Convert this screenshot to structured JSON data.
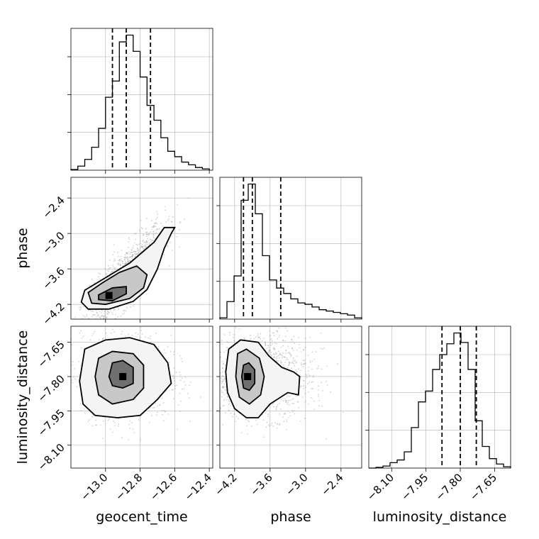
{
  "chart_data": {
    "type": "corner",
    "parameters": [
      "geocent_time",
      "phase",
      "luminosity_distance"
    ],
    "axes": {
      "geocent_time": {
        "label": "geocent_time",
        "range": [
          -13.2,
          -12.38
        ],
        "ticks": [
          -13.0,
          -12.8,
          -12.6,
          -12.4
        ],
        "tick_labels": [
          "−13.0",
          "−12.8",
          "−12.6",
          "−12.4"
        ]
      },
      "phase": {
        "label": "phase",
        "range": [
          -4.45,
          -2.05
        ],
        "ticks": [
          -4.2,
          -3.6,
          -3.0,
          -2.4
        ],
        "tick_labels": [
          "−4.2",
          "−3.6",
          "−3.0",
          "−2.4"
        ]
      },
      "luminosity_distance": {
        "label": "luminosity_distance",
        "range": [
          -8.2,
          -7.58
        ],
        "ticks": [
          -8.1,
          -7.95,
          -7.8,
          -7.65
        ],
        "tick_labels": [
          "−8.10",
          "−7.95",
          "−7.80",
          "−7.65"
        ]
      }
    },
    "histograms": [
      {
        "parameter": "geocent_time",
        "bin_edges": [
          -13.2,
          -13.16,
          -13.12,
          -13.08,
          -13.04,
          -13.0,
          -12.96,
          -12.92,
          -12.88,
          -12.84,
          -12.8,
          -12.76,
          -12.72,
          -12.68,
          -12.64,
          -12.6,
          -12.56,
          -12.52,
          -12.48,
          -12.44,
          -12.4
        ],
        "counts": [
          0.005,
          0.03,
          0.08,
          0.17,
          0.31,
          0.54,
          0.66,
          0.95,
          1.0,
          0.88,
          0.69,
          0.48,
          0.37,
          0.24,
          0.14,
          0.1,
          0.06,
          0.04,
          0.02,
          0.01
        ],
        "quantiles": [
          -12.96,
          -12.88,
          -12.74
        ]
      },
      {
        "parameter": "phase",
        "bin_edges": [
          -4.45,
          -4.33,
          -4.21,
          -4.09,
          -3.97,
          -3.85,
          -3.73,
          -3.61,
          -3.49,
          -3.37,
          -3.25,
          -3.13,
          -3.01,
          -2.89,
          -2.77,
          -2.65,
          -2.53,
          -2.41,
          -2.29,
          -2.17,
          -2.05
        ],
        "counts": [
          0.01,
          0.13,
          0.32,
          0.88,
          1.0,
          0.78,
          0.47,
          0.29,
          0.23,
          0.19,
          0.15,
          0.12,
          0.11,
          0.09,
          0.07,
          0.06,
          0.05,
          0.04,
          0.03,
          0.01
        ],
        "quantiles": [
          -4.05,
          -3.9,
          -3.42
        ]
      },
      {
        "parameter": "luminosity_distance",
        "bin_edges": [
          -8.2,
          -8.169,
          -8.138,
          -8.107,
          -8.076,
          -8.045,
          -8.014,
          -7.983,
          -7.952,
          -7.921,
          -7.89,
          -7.859,
          -7.828,
          -7.797,
          -7.766,
          -7.735,
          -7.704,
          -7.673,
          -7.642,
          -7.611,
          -7.58
        ],
        "counts": [
          0.0,
          0.005,
          0.015,
          0.04,
          0.06,
          0.12,
          0.3,
          0.49,
          0.57,
          0.73,
          0.84,
          0.92,
          1.0,
          0.93,
          0.73,
          0.35,
          0.16,
          0.07,
          0.03,
          0.01
        ],
        "quantiles": [
          -7.88,
          -7.8,
          -7.73
        ]
      }
    ],
    "pairs": [
      {
        "x": "geocent_time",
        "y": "phase",
        "peak": [
          -12.98,
          -4.05
        ],
        "contours": [
          [
            [
              -13.14,
              -4.16
            ],
            [
              -13.1,
              -4.28
            ],
            [
              -12.98,
              -4.28
            ],
            [
              -12.84,
              -4.15
            ],
            [
              -12.76,
              -3.95
            ],
            [
              -12.7,
              -3.6
            ],
            [
              -12.66,
              -3.25
            ],
            [
              -12.62,
              -3.0
            ],
            [
              -12.6,
              -2.9
            ],
            [
              -12.66,
              -2.9
            ],
            [
              -12.72,
              -3.15
            ],
            [
              -12.86,
              -3.5
            ],
            [
              -13.0,
              -3.75
            ],
            [
              -13.12,
              -3.96
            ],
            [
              -13.14,
              -4.16
            ]
          ],
          [
            [
              -13.08,
              -4.18
            ],
            [
              -13.0,
              -4.2
            ],
            [
              -12.86,
              -4.1
            ],
            [
              -12.78,
              -3.92
            ],
            [
              -12.76,
              -3.7
            ],
            [
              -12.82,
              -3.55
            ],
            [
              -12.92,
              -3.66
            ],
            [
              -13.02,
              -3.84
            ],
            [
              -13.1,
              -4.0
            ],
            [
              -13.08,
              -4.18
            ]
          ],
          [
            [
              -13.04,
              -4.12
            ],
            [
              -12.96,
              -4.14
            ],
            [
              -12.88,
              -4.02
            ],
            [
              -12.88,
              -3.9
            ],
            [
              -12.96,
              -3.92
            ],
            [
              -13.04,
              -4.04
            ],
            [
              -13.04,
              -4.12
            ]
          ]
        ],
        "scatter": {
          "center": [
            -12.9,
            -3.8
          ],
          "sx": 0.12,
          "sy": 0.45,
          "rho": 0.85,
          "n": 1400
        }
      },
      {
        "x": "geocent_time",
        "y": "luminosity_distance",
        "peak": [
          -12.9,
          -7.8
        ],
        "contours": [
          [
            [
              -13.15,
              -7.82
            ],
            [
              -13.12,
              -7.68
            ],
            [
              -13.0,
              -7.64
            ],
            [
              -12.86,
              -7.63
            ],
            [
              -12.72,
              -7.66
            ],
            [
              -12.64,
              -7.74
            ],
            [
              -12.62,
              -7.83
            ],
            [
              -12.7,
              -7.9
            ],
            [
              -12.8,
              -7.97
            ],
            [
              -12.93,
              -7.98
            ],
            [
              -13.06,
              -7.97
            ],
            [
              -13.13,
              -7.92
            ],
            [
              -13.15,
              -7.82
            ]
          ],
          [
            [
              -13.06,
              -7.8
            ],
            [
              -13.04,
              -7.72
            ],
            [
              -12.96,
              -7.69
            ],
            [
              -12.84,
              -7.7
            ],
            [
              -12.78,
              -7.75
            ],
            [
              -12.78,
              -7.85
            ],
            [
              -12.84,
              -7.9
            ],
            [
              -12.96,
              -7.92
            ],
            [
              -13.04,
              -7.88
            ],
            [
              -13.06,
              -7.8
            ]
          ],
          [
            [
              -12.98,
              -7.8
            ],
            [
              -12.96,
              -7.74
            ],
            [
              -12.9,
              -7.73
            ],
            [
              -12.84,
              -7.76
            ],
            [
              -12.84,
              -7.83
            ],
            [
              -12.9,
              -7.85
            ],
            [
              -12.96,
              -7.84
            ],
            [
              -12.98,
              -7.8
            ]
          ]
        ],
        "scatter": {
          "center": [
            -12.88,
            -7.8
          ],
          "sx": 0.13,
          "sy": 0.09,
          "rho": 0.0,
          "n": 1400
        }
      },
      {
        "x": "phase",
        "y": "luminosity_distance",
        "peak": [
          -3.98,
          -7.8
        ],
        "contours": [
          [
            [
              -4.35,
              -7.78
            ],
            [
              -4.3,
              -7.68
            ],
            [
              -4.1,
              -7.64
            ],
            [
              -3.8,
              -7.65
            ],
            [
              -3.62,
              -7.71
            ],
            [
              -3.4,
              -7.76
            ],
            [
              -3.2,
              -7.78
            ],
            [
              -3.1,
              -7.8
            ],
            [
              -3.12,
              -7.88
            ],
            [
              -3.3,
              -7.87
            ],
            [
              -3.6,
              -7.92
            ],
            [
              -3.8,
              -7.98
            ],
            [
              -4.0,
              -7.98
            ],
            [
              -4.2,
              -7.94
            ],
            [
              -4.32,
              -7.87
            ],
            [
              -4.35,
              -7.78
            ]
          ],
          [
            [
              -4.18,
              -7.8
            ],
            [
              -4.15,
              -7.7
            ],
            [
              -4.0,
              -7.68
            ],
            [
              -3.78,
              -7.72
            ],
            [
              -3.7,
              -7.8
            ],
            [
              -3.76,
              -7.88
            ],
            [
              -3.95,
              -7.92
            ],
            [
              -4.12,
              -7.89
            ],
            [
              -4.18,
              -7.8
            ]
          ],
          [
            [
              -4.08,
              -7.8
            ],
            [
              -4.05,
              -7.75
            ],
            [
              -3.96,
              -7.74
            ],
            [
              -3.86,
              -7.77
            ],
            [
              -3.86,
              -7.83
            ],
            [
              -3.95,
              -7.86
            ],
            [
              -4.05,
              -7.85
            ],
            [
              -4.08,
              -7.8
            ]
          ]
        ],
        "scatter": {
          "center": [
            -3.8,
            -7.8
          ],
          "sx": 0.45,
          "sy": 0.09,
          "rho": 0.0,
          "n": 1400
        }
      }
    ]
  }
}
